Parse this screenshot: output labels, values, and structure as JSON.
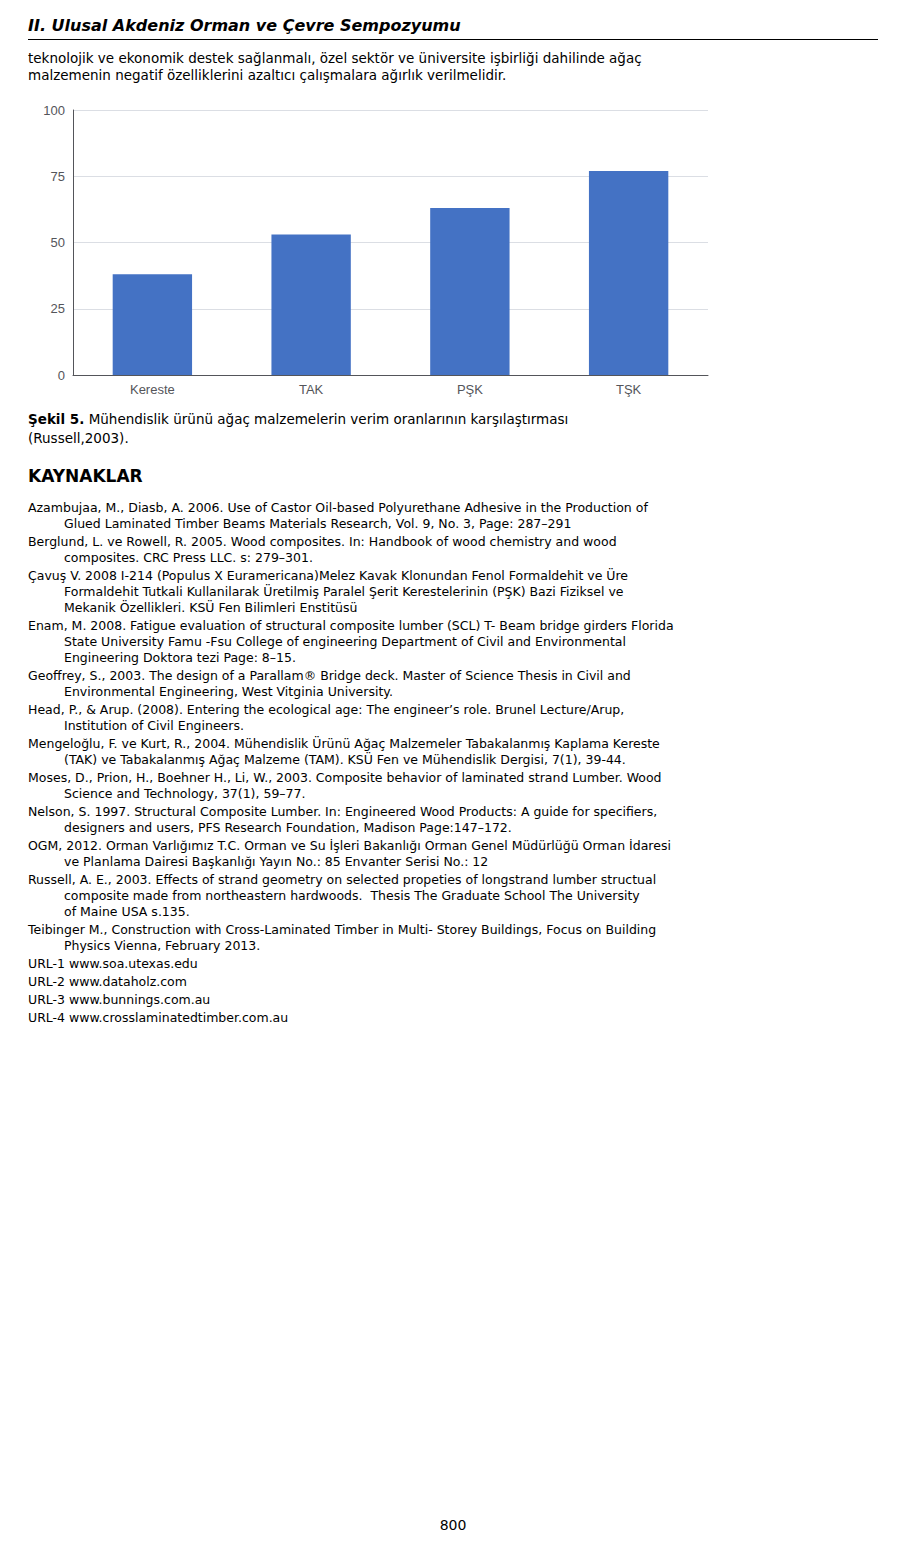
{
  "chart_data": {
    "type": "bar",
    "categories": [
      "Kereste",
      "TAK",
      "PŞK",
      "TŞK"
    ],
    "values": [
      38,
      53,
      63,
      77
    ],
    "color": "#4472C4",
    "ylim": [
      0,
      100
    ],
    "yticks": [
      0,
      25,
      50,
      75,
      100
    ],
    "grid": true
  },
  "header_title": "II. Ulusal Akdeniz Orman ve Çevre Sempozyumu",
  "intro_text": [
    "teknolojik ve ekonomik destek sağlanmalı, özel sektör ve üniversite işbirliği dahilinde ağaç",
    "malzemenin negatif özelliklerini azaltıcı çalışmalara ağırlık verilmelidir."
  ],
  "caption_bold": "Şekil 5.",
  "caption_normal": " Mühendislik ürünü ağaç malzemelerin verim oranlarının karşılaştırması",
  "caption_line2": "(Russell,2003).",
  "section_title": "KAYNAKLAR",
  "references": [
    {
      "first": "Azambujaa, M., Diasb, A. 2006. Use of Castor Oil-based Polyurethane Adhesive in the Production of",
      "cont": [
        "Glued Laminated Timber Beams Materials Research, Vol. 9, No. 3, Page: 287–291"
      ]
    },
    {
      "first": "Berglund, L. ve Rowell, R. 2005. Wood composites. In: Handbook of wood chemistry and wood",
      "cont": [
        "composites. CRC Press LLC. s: 279–301."
      ]
    },
    {
      "first": "Çavuş V. 2008 I-214 (Populus X Euramericana)Melez Kavak Klonundan Fenol Formaldehit ve Üre",
      "cont": [
        "Formaldehit Tutkali Kullanilarak Üretilmiş Paralel Şerit Kerestelerinin (PŞK) Bazi Fiziksel ve",
        "Mekanik Özellikleri. KSÜ Fen Bilimleri Enstitüsü"
      ]
    },
    {
      "first": "Enam, M. 2008. Fatigue evaluation of structural composite lumber (SCL) T- Beam bridge girders Florida",
      "cont": [
        "State University Famu -Fsu College of engineering Department of Civil and Environmental",
        "Engineering Doktora tezi Page: 8–15."
      ]
    },
    {
      "first": "Geoffrey, S., 2003. The design of a Parallam® Bridge deck. Master of Science Thesis in Civil and",
      "cont": [
        "Environmental Engineering, West Vitginia University."
      ]
    },
    {
      "first": "Head, P., & Arup. (2008). Entering the ecological age: The engineer’s role. Brunel Lecture/Arup,",
      "cont": [
        "Institution of Civil Engineers."
      ]
    },
    {
      "first": "Mengeloğlu, F. ve Kurt, R., 2004. Mühendislik Ürünü Ağaç Malzemeler Tabakalanmış Kaplama Kereste",
      "cont": [
        "(TAK) ve Tabakalanmış Ağaç Malzeme (TAM). KSÜ Fen ve Mühendislik Dergisi, 7(1), 39-44."
      ]
    },
    {
      "first": "Moses, D., Prion, H., Boehner H., Li, W., 2003. Composite behavior of laminated strand Lumber. Wood",
      "cont": [
        "Science and Technology, 37(1), 59–77."
      ]
    },
    {
      "first": "Nelson, S. 1997. Structural Composite Lumber. In: Engineered Wood Products: A guide for specifiers,",
      "cont": [
        "designers and users, PFS Research Foundation, Madison Page:147–172."
      ]
    },
    {
      "first": "OGM, 2012. Orman Varlığımız T.C. Orman ve Su İşleri Bakanlığı Orman Genel Müdürlüğü Orman İdaresi",
      "cont": [
        "ve Planlama Dairesi Başkanlığı Yayın No.: 85 Envanter Serisi No.: 12"
      ]
    },
    {
      "first": "Russell, A. E., 2003. Effects of strand geometry on selected propeties of longstrand lumber structual",
      "cont": [
        "composite made from northeastern hardwoods.  Thesis The Graduate School The University",
        "of Maine USA s.135."
      ]
    },
    {
      "first": "Teibinger M., Construction with Cross-Laminated Timber in Multi- Storey Buildings, Focus on Building",
      "cont": [
        "Physics Vienna, February 2013."
      ]
    },
    {
      "first": "URL-1 www.soa.utexas.edu",
      "cont": []
    },
    {
      "first": "URL-2 www.dataholz.com",
      "cont": []
    },
    {
      "first": "URL-3 www.bunnings.com.au",
      "cont": []
    },
    {
      "first": "URL-4 www.crosslaminatedtimber.com.au",
      "cont": []
    }
  ],
  "page_number": "800"
}
